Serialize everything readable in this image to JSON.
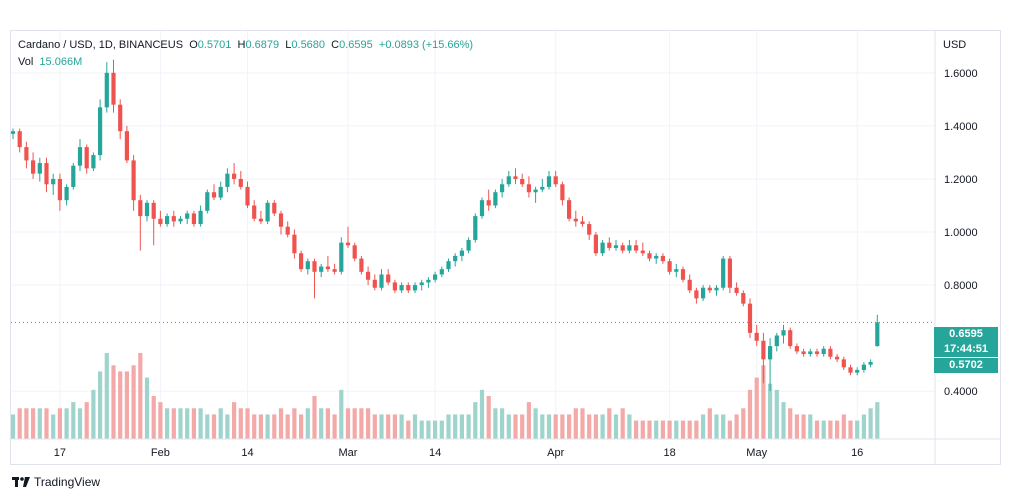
{
  "legend": {
    "title": "Cardano / USD, 1D, BINANCEUS",
    "o_label": "O",
    "o_value": "0.5701",
    "h_label": "H",
    "h_value": "0.6879",
    "l_label": "L",
    "l_value": "0.5680",
    "c_label": "C",
    "c_value": "0.6595",
    "change": "+0.0893 (+15.66%)",
    "vol_label": "Vol",
    "vol_value": "15.066M"
  },
  "price_tags": {
    "last": "0.6595",
    "countdown": "17:44:51",
    "second": "0.5702"
  },
  "brand": {
    "name": "TradingView"
  },
  "colors": {
    "up": "#26a69a",
    "down": "#ef5350",
    "up_vol": "#9fd4cd",
    "down_vol": "#f3a9a8",
    "grid": "#f0f3fa"
  },
  "chart_data": {
    "type": "candlestick",
    "title": "Cardano / USD, 1D, BINANCEUS",
    "ylabel": "USD",
    "ylim": [
      0.25,
      1.72
    ],
    "y_ticks": [
      "1.6000",
      "1.4000",
      "1.2000",
      "1.0000",
      "0.8000",
      "0.4000"
    ],
    "y_tick_values": [
      1.6,
      1.4,
      1.2,
      1.0,
      0.8,
      0.4
    ],
    "x_ticks": [
      {
        "label": "17",
        "index": 7
      },
      {
        "label": "Feb",
        "index": 22
      },
      {
        "label": "14",
        "index": 35
      },
      {
        "label": "Mar",
        "index": 50
      },
      {
        "label": "14",
        "index": 63
      },
      {
        "label": "Apr",
        "index": 81
      },
      {
        "label": "18",
        "index": 98
      },
      {
        "label": "May",
        "index": 111
      },
      {
        "label": "16",
        "index": 126
      }
    ],
    "last_price": 0.6595,
    "grid": true,
    "ohlc": [
      [
        1.37,
        1.39,
        1.35,
        1.38
      ],
      [
        1.38,
        1.39,
        1.3,
        1.32
      ],
      [
        1.32,
        1.34,
        1.24,
        1.27
      ],
      [
        1.27,
        1.3,
        1.2,
        1.22
      ],
      [
        1.22,
        1.28,
        1.19,
        1.26
      ],
      [
        1.26,
        1.28,
        1.15,
        1.18
      ],
      [
        1.18,
        1.22,
        1.14,
        1.2
      ],
      [
        1.2,
        1.22,
        1.08,
        1.12
      ],
      [
        1.12,
        1.18,
        1.1,
        1.17
      ],
      [
        1.17,
        1.26,
        1.16,
        1.25
      ],
      [
        1.25,
        1.35,
        1.23,
        1.32
      ],
      [
        1.32,
        1.33,
        1.22,
        1.24
      ],
      [
        1.24,
        1.3,
        1.23,
        1.29
      ],
      [
        1.29,
        1.5,
        1.27,
        1.47
      ],
      [
        1.47,
        1.64,
        1.45,
        1.6
      ],
      [
        1.6,
        1.65,
        1.45,
        1.48
      ],
      [
        1.48,
        1.5,
        1.35,
        1.38
      ],
      [
        1.38,
        1.4,
        1.26,
        1.27
      ],
      [
        1.27,
        1.29,
        1.08,
        1.12
      ],
      [
        1.12,
        1.14,
        0.93,
        1.06
      ],
      [
        1.06,
        1.12,
        1.04,
        1.11
      ],
      [
        1.11,
        1.12,
        0.95,
        1.05
      ],
      [
        1.05,
        1.08,
        1.02,
        1.03
      ],
      [
        1.03,
        1.07,
        1.02,
        1.06
      ],
      [
        1.06,
        1.08,
        1.02,
        1.04
      ],
      [
        1.04,
        1.06,
        1.03,
        1.05
      ],
      [
        1.05,
        1.08,
        1.03,
        1.07
      ],
      [
        1.07,
        1.08,
        1.02,
        1.03
      ],
      [
        1.03,
        1.1,
        1.02,
        1.08
      ],
      [
        1.08,
        1.16,
        1.07,
        1.15
      ],
      [
        1.15,
        1.18,
        1.12,
        1.13
      ],
      [
        1.13,
        1.19,
        1.12,
        1.17
      ],
      [
        1.17,
        1.24,
        1.15,
        1.22
      ],
      [
        1.22,
        1.26,
        1.18,
        1.2
      ],
      [
        1.2,
        1.23,
        1.16,
        1.17
      ],
      [
        1.17,
        1.19,
        1.09,
        1.1
      ],
      [
        1.1,
        1.12,
        1.04,
        1.05
      ],
      [
        1.05,
        1.08,
        1.03,
        1.04
      ],
      [
        1.04,
        1.12,
        1.03,
        1.11
      ],
      [
        1.11,
        1.12,
        1.06,
        1.07
      ],
      [
        1.07,
        1.08,
        0.99,
        1.02
      ],
      [
        1.02,
        1.04,
        0.98,
        0.99
      ],
      [
        0.99,
        1.01,
        0.9,
        0.92
      ],
      [
        0.92,
        0.93,
        0.85,
        0.86
      ],
      [
        0.86,
        0.9,
        0.84,
        0.89
      ],
      [
        0.89,
        0.9,
        0.75,
        0.85
      ],
      [
        0.85,
        0.88,
        0.83,
        0.87
      ],
      [
        0.87,
        0.91,
        0.85,
        0.86
      ],
      [
        0.86,
        0.88,
        0.84,
        0.85
      ],
      [
        0.85,
        0.98,
        0.84,
        0.96
      ],
      [
        0.96,
        1.02,
        0.94,
        0.95
      ],
      [
        0.95,
        0.96,
        0.89,
        0.9
      ],
      [
        0.9,
        0.91,
        0.84,
        0.85
      ],
      [
        0.85,
        0.87,
        0.8,
        0.82
      ],
      [
        0.82,
        0.84,
        0.78,
        0.79
      ],
      [
        0.79,
        0.86,
        0.78,
        0.84
      ],
      [
        0.84,
        0.86,
        0.8,
        0.81
      ],
      [
        0.81,
        0.82,
        0.77,
        0.78
      ],
      [
        0.78,
        0.81,
        0.77,
        0.8
      ],
      [
        0.8,
        0.81,
        0.77,
        0.78
      ],
      [
        0.78,
        0.81,
        0.77,
        0.8
      ],
      [
        0.8,
        0.82,
        0.78,
        0.81
      ],
      [
        0.81,
        0.83,
        0.79,
        0.82
      ],
      [
        0.82,
        0.85,
        0.81,
        0.84
      ],
      [
        0.84,
        0.87,
        0.83,
        0.86
      ],
      [
        0.86,
        0.9,
        0.85,
        0.89
      ],
      [
        0.89,
        0.92,
        0.87,
        0.91
      ],
      [
        0.91,
        0.94,
        0.89,
        0.93
      ],
      [
        0.93,
        0.98,
        0.92,
        0.97
      ],
      [
        0.97,
        1.07,
        0.96,
        1.06
      ],
      [
        1.06,
        1.13,
        1.05,
        1.12
      ],
      [
        1.12,
        1.16,
        1.08,
        1.1
      ],
      [
        1.1,
        1.16,
        1.09,
        1.15
      ],
      [
        1.15,
        1.2,
        1.13,
        1.18
      ],
      [
        1.18,
        1.23,
        1.17,
        1.21
      ],
      [
        1.21,
        1.24,
        1.18,
        1.2
      ],
      [
        1.2,
        1.22,
        1.17,
        1.18
      ],
      [
        1.18,
        1.21,
        1.13,
        1.15
      ],
      [
        1.15,
        1.17,
        1.11,
        1.16
      ],
      [
        1.16,
        1.2,
        1.15,
        1.17
      ],
      [
        1.17,
        1.23,
        1.16,
        1.21
      ],
      [
        1.21,
        1.23,
        1.17,
        1.18
      ],
      [
        1.18,
        1.19,
        1.1,
        1.12
      ],
      [
        1.12,
        1.13,
        1.04,
        1.05
      ],
      [
        1.05,
        1.08,
        1.02,
        1.04
      ],
      [
        1.04,
        1.06,
        1.02,
        1.03
      ],
      [
        1.03,
        1.04,
        0.97,
        0.99
      ],
      [
        0.99,
        1.0,
        0.91,
        0.92
      ],
      [
        0.92,
        0.97,
        0.91,
        0.96
      ],
      [
        0.96,
        0.98,
        0.93,
        0.94
      ],
      [
        0.94,
        0.97,
        0.93,
        0.95
      ],
      [
        0.95,
        0.96,
        0.92,
        0.93
      ],
      [
        0.93,
        0.97,
        0.92,
        0.95
      ],
      [
        0.95,
        0.97,
        0.92,
        0.93
      ],
      [
        0.93,
        0.96,
        0.91,
        0.92
      ],
      [
        0.92,
        0.93,
        0.89,
        0.9
      ],
      [
        0.9,
        0.92,
        0.88,
        0.91
      ],
      [
        0.91,
        0.92,
        0.88,
        0.89
      ],
      [
        0.89,
        0.9,
        0.84,
        0.85
      ],
      [
        0.85,
        0.88,
        0.83,
        0.86
      ],
      [
        0.86,
        0.87,
        0.81,
        0.82
      ],
      [
        0.82,
        0.84,
        0.77,
        0.78
      ],
      [
        0.78,
        0.79,
        0.73,
        0.75
      ],
      [
        0.75,
        0.8,
        0.74,
        0.79
      ],
      [
        0.79,
        0.8,
        0.77,
        0.78
      ],
      [
        0.78,
        0.8,
        0.76,
        0.79
      ],
      [
        0.79,
        0.91,
        0.78,
        0.9
      ],
      [
        0.9,
        0.91,
        0.77,
        0.79
      ],
      [
        0.79,
        0.81,
        0.76,
        0.77
      ],
      [
        0.77,
        0.78,
        0.72,
        0.73
      ],
      [
        0.73,
        0.75,
        0.6,
        0.62
      ],
      [
        0.62,
        0.65,
        0.57,
        0.59
      ],
      [
        0.59,
        0.62,
        0.43,
        0.52
      ],
      [
        0.52,
        0.6,
        0.4,
        0.57
      ],
      [
        0.57,
        0.62,
        0.55,
        0.61
      ],
      [
        0.61,
        0.65,
        0.58,
        0.63
      ],
      [
        0.63,
        0.64,
        0.56,
        0.57
      ],
      [
        0.57,
        0.58,
        0.54,
        0.55
      ],
      [
        0.55,
        0.56,
        0.53,
        0.54
      ],
      [
        0.54,
        0.56,
        0.53,
        0.55
      ],
      [
        0.55,
        0.56,
        0.53,
        0.54
      ],
      [
        0.54,
        0.57,
        0.53,
        0.56
      ],
      [
        0.56,
        0.57,
        0.52,
        0.53
      ],
      [
        0.53,
        0.54,
        0.51,
        0.52
      ],
      [
        0.52,
        0.53,
        0.48,
        0.49
      ],
      [
        0.49,
        0.5,
        0.46,
        0.47
      ],
      [
        0.47,
        0.49,
        0.46,
        0.48
      ],
      [
        0.48,
        0.51,
        0.47,
        0.5
      ],
      [
        0.5,
        0.52,
        0.49,
        0.51
      ],
      [
        0.57,
        0.688,
        0.568,
        0.6595
      ]
    ],
    "volume": [
      4,
      5,
      5,
      5,
      5,
      5,
      4,
      5,
      5,
      6,
      5,
      6,
      8,
      11,
      14,
      12,
      11,
      11,
      12,
      14,
      10,
      7,
      6,
      5,
      5,
      5,
      5,
      5,
      5,
      4,
      4,
      5,
      4,
      6,
      5,
      5,
      4,
      4,
      4,
      4,
      5,
      4,
      5,
      4,
      5,
      7,
      5,
      5,
      4,
      8,
      5,
      5,
      5,
      5,
      4,
      4,
      4,
      4,
      4,
      3,
      4,
      3,
      3,
      3,
      3,
      4,
      4,
      4,
      4,
      6,
      8,
      7,
      5,
      5,
      4,
      4,
      4,
      6,
      5,
      4,
      4,
      4,
      4,
      4,
      5,
      5,
      4,
      4,
      4,
      5,
      4,
      5,
      4,
      3,
      3,
      3,
      3,
      3,
      3,
      3,
      3,
      3,
      3,
      4,
      5,
      4,
      4,
      3,
      4,
      5,
      8,
      10,
      12,
      9,
      8,
      6,
      5,
      4,
      4,
      4,
      3,
      3,
      3,
      3,
      4,
      3,
      3,
      4,
      5,
      6
    ]
  }
}
